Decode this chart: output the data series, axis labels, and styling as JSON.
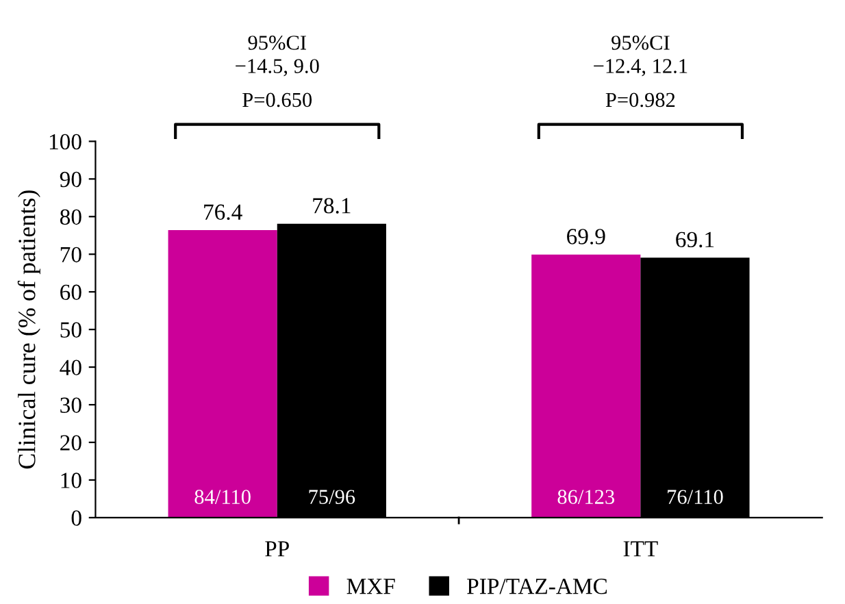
{
  "chart_data": {
    "type": "bar",
    "ylabel": "Clinical cure (% of patients)",
    "categories": [
      "PP",
      "ITT"
    ],
    "series": [
      {
        "name": "MXF",
        "color": "#cc0099",
        "values": [
          76.4,
          69.9
        ]
      },
      {
        "name": "PIP/TAZ-AMC",
        "color": "#000000",
        "values": [
          78.1,
          69.1
        ]
      }
    ],
    "ylim": [
      0,
      100
    ],
    "yticks": [
      0,
      10,
      20,
      30,
      40,
      50,
      60,
      70,
      80,
      90,
      100
    ],
    "data_labels": true,
    "grid": false,
    "legend": "bottom",
    "annotations": [
      "84/110",
      "75/96",
      "86/123",
      "76/110",
      "95%CI\n−14.5, 9.0",
      "P=0.650",
      "95%CI\n−12.4, 12.1",
      "P=0.982"
    ]
  }
}
